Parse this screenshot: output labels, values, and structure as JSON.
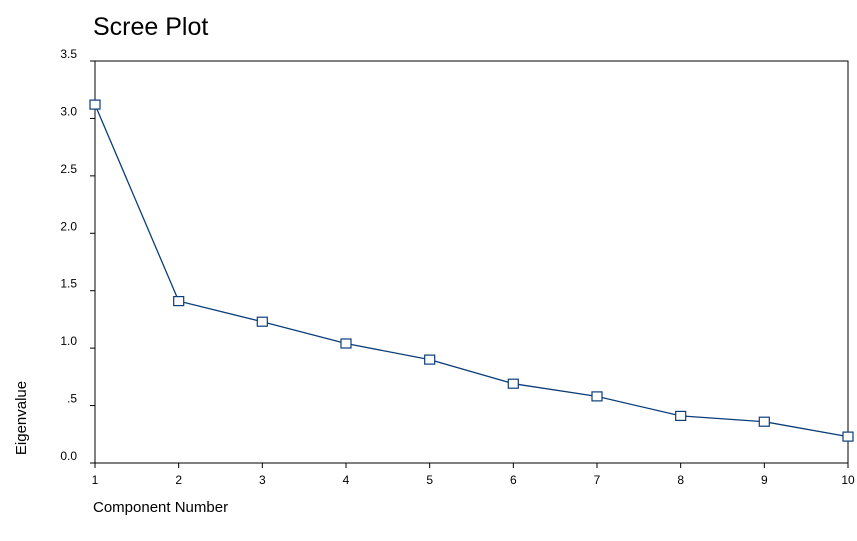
{
  "chart_data": {
    "type": "line",
    "title": "Scree Plot",
    "xlabel": "Component Number",
    "ylabel": "Eigenvalue",
    "x": [
      1,
      2,
      3,
      4,
      5,
      6,
      7,
      8,
      9,
      10
    ],
    "series": [
      {
        "values": [
          3.12,
          1.41,
          1.23,
          1.04,
          0.9,
          0.69,
          0.58,
          0.41,
          0.36,
          0.23
        ],
        "color": "#0a3d7a",
        "marker": "square-open"
      }
    ],
    "xlim": [
      1,
      10
    ],
    "ylim": [
      0,
      3.5
    ],
    "xticks": [
      1,
      2,
      3,
      4,
      5,
      6,
      7,
      8,
      9,
      10
    ],
    "xtick_labels": [
      "1",
      "2",
      "3",
      "4",
      "5",
      "6",
      "7",
      "8",
      "9",
      "10"
    ],
    "yticks": [
      0,
      0.5,
      1.0,
      1.5,
      2.0,
      2.5,
      3.0,
      3.5
    ],
    "ytick_labels": [
      "0.0",
      ".5",
      "1.0",
      "1.5",
      "2.0",
      "2.5",
      "3.0",
      "3.5"
    ],
    "grid": false,
    "legend": "none"
  }
}
